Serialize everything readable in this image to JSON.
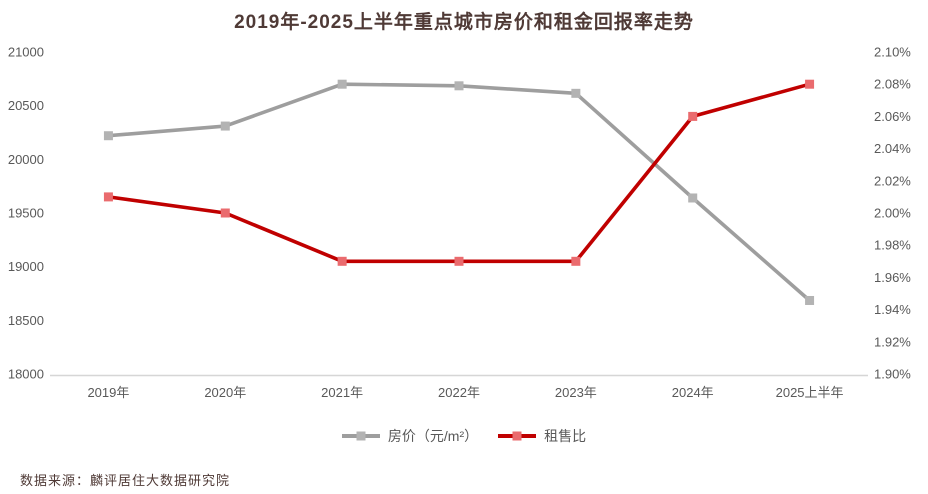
{
  "title": "2019年-2025上半年重点城市房价和租金回报率走势",
  "footer": {
    "source": "数据来源：麟评居住大数据研究院"
  },
  "colors": {
    "title_text": "#4f3a36",
    "axis_text": "#595959",
    "axis_line": "#d6d6d6",
    "background": "#ffffff"
  },
  "chart_data": {
    "type": "line",
    "title": "2019年-2025上半年重点城市房价和租金回报率走势",
    "categories": [
      "2019年",
      "2020年",
      "2021年",
      "2022年",
      "2023年",
      "2024年",
      "2025上半年"
    ],
    "series": [
      {
        "name": "房价（元/m²）",
        "axis": "left",
        "line_color": "#9e9e9e",
        "marker_color": "#b3b3b3",
        "values": [
          20220,
          20310,
          20700,
          20685,
          20615,
          19640,
          18685
        ]
      },
      {
        "name": "租售比",
        "axis": "right",
        "line_color": "#c00000",
        "marker_color": "#ea6b6e",
        "values": [
          2.01,
          2.0,
          1.97,
          1.97,
          1.97,
          2.06,
          2.08
        ]
      }
    ],
    "left_axis": {
      "min": 18000,
      "max": 21000,
      "step": 500,
      "ticks": [
        "21000",
        "20500",
        "20000",
        "19500",
        "19000",
        "18500",
        "18000"
      ]
    },
    "right_axis": {
      "min": 1.9,
      "max": 2.1,
      "step": 0.02,
      "ticks": [
        "2.10%",
        "2.08%",
        "2.06%",
        "2.04%",
        "2.02%",
        "2.00%",
        "1.98%",
        "1.96%",
        "1.94%",
        "1.92%",
        "1.90%"
      ]
    },
    "grid": false,
    "legend_position": "bottom"
  }
}
